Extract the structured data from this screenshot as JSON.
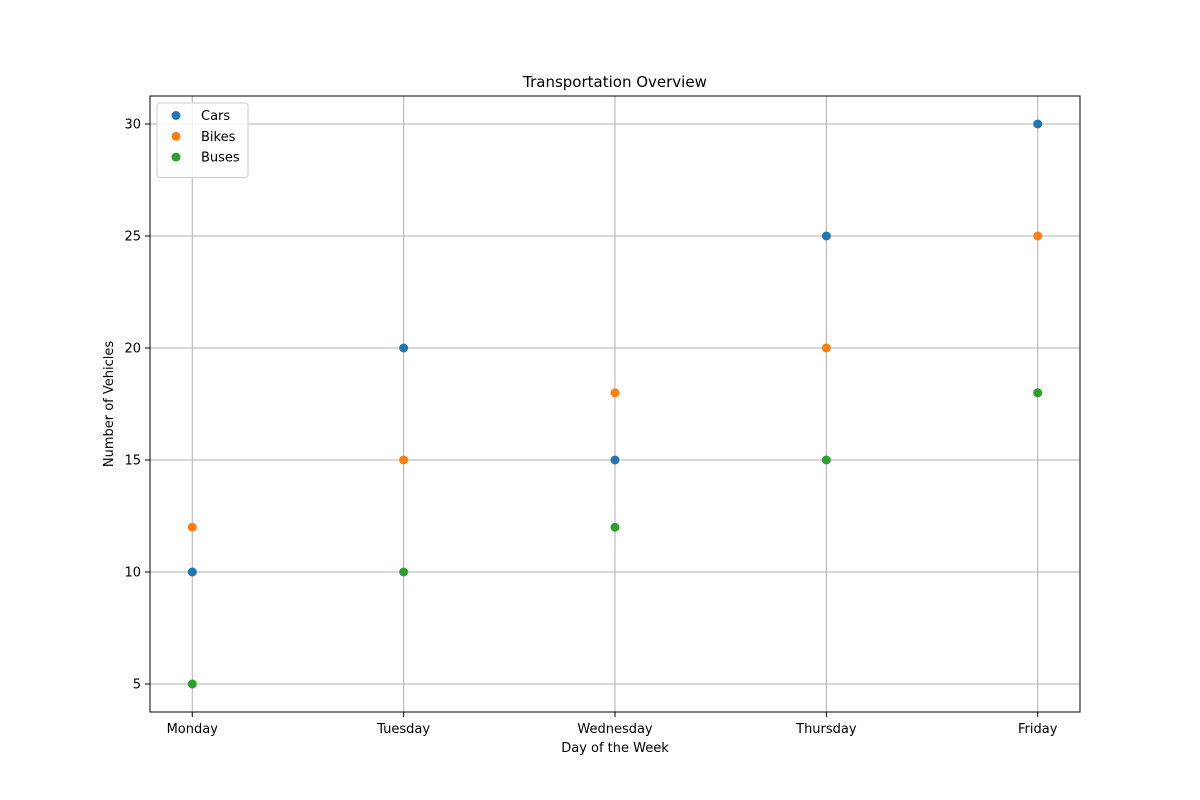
{
  "chart_data": {
    "type": "scatter",
    "title": "Transportation Overview",
    "xlabel": "Day of the Week",
    "ylabel": "Number of Vehicles",
    "categories": [
      "Monday",
      "Tuesday",
      "Wednesday",
      "Thursday",
      "Friday"
    ],
    "ylim": [
      3.75,
      31.25
    ],
    "yticks": [
      5,
      10,
      15,
      20,
      25,
      30
    ],
    "grid": true,
    "legend_position": "top-left",
    "series": [
      {
        "name": "Cars",
        "color": "#1f77b4",
        "values": [
          10,
          20,
          15,
          25,
          30
        ]
      },
      {
        "name": "Bikes",
        "color": "#ff7f0e",
        "values": [
          12,
          15,
          18,
          20,
          25
        ]
      },
      {
        "name": "Buses",
        "color": "#2ca02c",
        "values": [
          5,
          10,
          12,
          15,
          18
        ]
      }
    ]
  }
}
